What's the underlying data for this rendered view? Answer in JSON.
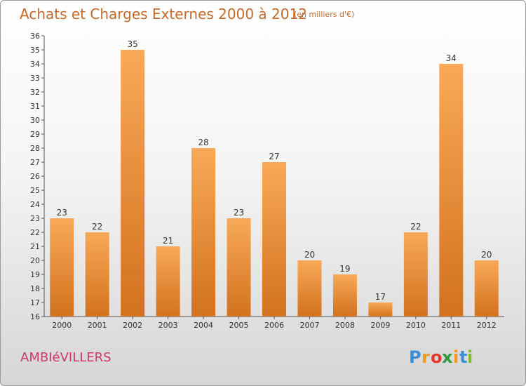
{
  "chart_data": {
    "type": "bar",
    "title": "Achats et Charges Externes 2000 à 2012",
    "unit_note": "(en milliers d'€)",
    "categories": [
      "2000",
      "2001",
      "2002",
      "2003",
      "2004",
      "2005",
      "2006",
      "2007",
      "2008",
      "2009",
      "2010",
      "2011",
      "2012"
    ],
    "values": [
      23,
      22,
      35,
      21,
      28,
      23,
      27,
      20,
      19,
      17,
      22,
      34,
      20
    ],
    "xlabel": "",
    "ylabel": "",
    "ylim": [
      16,
      36
    ],
    "yticks": [
      16,
      17,
      18,
      19,
      20,
      21,
      22,
      23,
      24,
      25,
      26,
      27,
      28,
      29,
      30,
      31,
      32,
      33,
      34,
      35,
      36
    ],
    "grid": false,
    "colors": {
      "bar_light": "#f8a957",
      "bar_dark": "#d2721f",
      "title": "#c46a2a"
    }
  },
  "place_name": "AMBIéVILLERS",
  "logo": {
    "letters": [
      "P",
      "r",
      "o",
      "x",
      "i",
      "t",
      "i"
    ],
    "colors": [
      "#3b8fd8",
      "#f29a1e",
      "#e8362b",
      "#2e9a3c",
      "#f29a1e",
      "#3b8fd8",
      "#7cbf2e"
    ]
  }
}
